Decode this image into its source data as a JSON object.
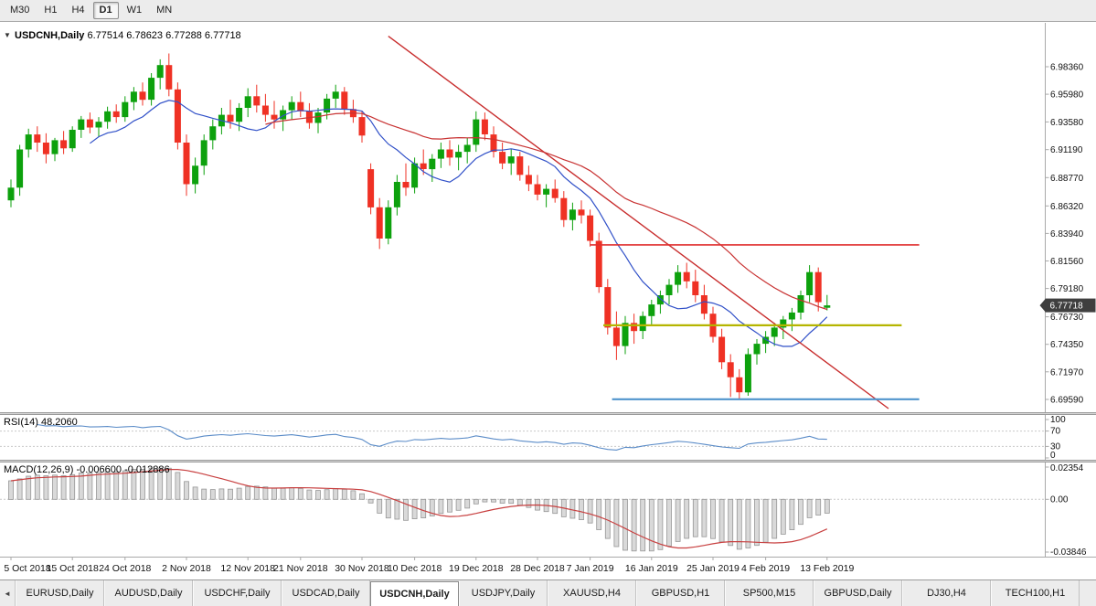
{
  "toolbar": {
    "timeframes": [
      {
        "label": "M30",
        "active": false
      },
      {
        "label": "H1",
        "active": false
      },
      {
        "label": "H4",
        "active": false
      },
      {
        "label": "D1",
        "active": true
      },
      {
        "label": "W1",
        "active": false
      },
      {
        "label": "MN",
        "active": false
      }
    ]
  },
  "chart": {
    "collapse_icon": "▼",
    "title_symbol": "USDCNH,Daily",
    "ohlc_text": "6.77514 6.78623 6.77288 6.77718",
    "price_tag": "6.77718",
    "price_axis": [
      {
        "v": 6.9836,
        "label": "6.98360"
      },
      {
        "v": 6.9598,
        "label": "6.95980"
      },
      {
        "v": 6.9358,
        "label": "6.93580"
      },
      {
        "v": 6.9119,
        "label": "6.91190"
      },
      {
        "v": 6.8877,
        "label": "6.88770"
      },
      {
        "v": 6.8632,
        "label": "6.86320"
      },
      {
        "v": 6.8394,
        "label": "6.83940"
      },
      {
        "v": 6.8156,
        "label": "6.81560"
      },
      {
        "v": 6.7918,
        "label": "6.79180"
      },
      {
        "v": 6.7673,
        "label": "6.76730"
      },
      {
        "v": 6.7435,
        "label": "6.74350"
      },
      {
        "v": 6.7197,
        "label": "6.71970"
      },
      {
        "v": 6.6959,
        "label": "6.69590"
      }
    ],
    "date_axis": [
      {
        "i": 0,
        "label": "5 Oct 2018"
      },
      {
        "i": 7,
        "label": "15 Oct 2018"
      },
      {
        "i": 13,
        "label": "24 Oct 2018"
      },
      {
        "i": 20,
        "label": "2 Nov 2018"
      },
      {
        "i": 27,
        "label": "12 Nov 2018"
      },
      {
        "i": 33,
        "label": "21 Nov 2018"
      },
      {
        "i": 40,
        "label": "30 Nov 2018"
      },
      {
        "i": 46,
        "label": "10 Dec 2018"
      },
      {
        "i": 53,
        "label": "19 Dec 2018"
      },
      {
        "i": 60,
        "label": "28 Dec 2018"
      },
      {
        "i": 66,
        "label": "7 Jan 2019"
      },
      {
        "i": 73,
        "label": "16 Jan 2019"
      },
      {
        "i": 80,
        "label": "25 Jan 2019"
      },
      {
        "i": 86,
        "label": "4 Feb 2019"
      },
      {
        "i": 93,
        "label": "13 Feb 2019"
      }
    ]
  },
  "rsi": {
    "label": "RSI(14)",
    "value": "48.2060",
    "period": 14,
    "levels": [
      70,
      30
    ],
    "scale": [
      {
        "v": 100,
        "label": "100"
      },
      {
        "v": 70,
        "label": "70"
      },
      {
        "v": 30,
        "label": "30"
      },
      {
        "v": 0,
        "label": "0"
      }
    ]
  },
  "macd": {
    "label": "MACD(12,26,9)",
    "value_main": "-0.006600",
    "value_signal": "-0.012886",
    "params": {
      "fast": 12,
      "slow": 26,
      "signal": 9
    },
    "scale": [
      {
        "v": 0.02354,
        "label": "0.02354"
      },
      {
        "v": 0,
        "label": "0.00"
      },
      {
        "v": -0.03846,
        "label": "-0.03846"
      }
    ]
  },
  "tabs": {
    "left_arrow": "◄",
    "items": [
      {
        "label": "EURUSD,Daily",
        "active": false
      },
      {
        "label": "AUDUSD,Daily",
        "active": false
      },
      {
        "label": "USDCHF,Daily",
        "active": false
      },
      {
        "label": "USDCAD,Daily",
        "active": false
      },
      {
        "label": "USDCNH,Daily",
        "active": true
      },
      {
        "label": "USDJPY,Daily",
        "active": false
      },
      {
        "label": "XAUUSD,H4",
        "active": false
      },
      {
        "label": "GBPUSD,H1",
        "active": false
      },
      {
        "label": "SP500,M15",
        "active": false
      },
      {
        "label": "GBPUSD,Daily",
        "active": false
      },
      {
        "label": "DJ30,H4",
        "active": false
      },
      {
        "label": "TECH100,H1",
        "active": false
      }
    ]
  },
  "colors": {
    "candle_up": "#0da10d",
    "candle_down": "#ef3124",
    "ma_fast": "#3050c8",
    "ma_slow": "#c83232",
    "trendline": "#c82e2e",
    "hline_red": "#e03030",
    "hline_yellow": "#b5b500",
    "hline_blue": "#4f94cd",
    "rsi_line": "#5b8cc8",
    "macd_hist_fill": "#d9d9d9",
    "macd_hist_stroke": "#969696",
    "macd_signal": "#c84040",
    "level_dash": "#c9c9c9",
    "axis_line": "#a9a9a9",
    "tag_bg": "#3f3f3f",
    "tag_text": "#ffffff"
  },
  "chart_data": {
    "type": "candlestick",
    "symbol": "USDCNH",
    "timeframe": "Daily",
    "title": "USDCNH,Daily 6.77514 6.78623 6.77288 6.77718",
    "price_ylim": [
      6.6848,
      7.0215
    ],
    "rsi_ylim": [
      0,
      100
    ],
    "macd_ylim": [
      -0.03846,
      0.02354
    ],
    "overlays": [
      {
        "type": "sma",
        "period": 10,
        "color_key": "ma_fast"
      },
      {
        "type": "sma",
        "period": 30,
        "color_key": "ma_slow"
      }
    ],
    "objects": {
      "trendline": {
        "from_bar": 43,
        "from_price": 7.01,
        "to_bar": 100,
        "to_price": 6.688
      },
      "hlines": [
        {
          "price": 6.8295,
          "from_bar": 66,
          "to_bar": 103.5,
          "color_key": "hline_red",
          "width": 1.6
        },
        {
          "price": 6.76,
          "from_bar": 67.5,
          "to_bar": 101.5,
          "color_key": "hline_yellow",
          "width": 2.2
        },
        {
          "price": 6.696,
          "from_bar": 68.5,
          "to_bar": 103.5,
          "color_key": "hline_blue",
          "width": 2.2
        }
      ]
    },
    "candles": [
      [
        6.868,
        6.886,
        6.862,
        6.879
      ],
      [
        6.879,
        6.916,
        6.872,
        6.912
      ],
      [
        6.912,
        6.93,
        6.905,
        6.925
      ],
      [
        6.925,
        6.932,
        6.91,
        6.918
      ],
      [
        6.918,
        6.926,
        6.9,
        6.908
      ],
      [
        6.908,
        6.922,
        6.902,
        6.92
      ],
      [
        6.92,
        6.928,
        6.908,
        6.913
      ],
      [
        6.913,
        6.932,
        6.91,
        6.929
      ],
      [
        6.929,
        6.941,
        6.922,
        6.938
      ],
      [
        6.938,
        6.944,
        6.926,
        6.931
      ],
      [
        6.931,
        6.94,
        6.923,
        6.936
      ],
      [
        6.936,
        6.949,
        6.93,
        6.945
      ],
      [
        6.945,
        6.951,
        6.935,
        6.94
      ],
      [
        6.94,
        6.958,
        6.936,
        6.953
      ],
      [
        6.953,
        6.966,
        6.946,
        6.962
      ],
      [
        6.962,
        6.97,
        6.95,
        6.955
      ],
      [
        6.955,
        6.978,
        6.95,
        6.974
      ],
      [
        6.974,
        6.99,
        6.964,
        6.985
      ],
      [
        6.985,
        6.995,
        6.958,
        6.964
      ],
      [
        6.964,
        6.97,
        6.912,
        6.918
      ],
      [
        6.918,
        6.925,
        6.872,
        6.882
      ],
      [
        6.882,
        6.905,
        6.874,
        6.898
      ],
      [
        6.898,
        6.925,
        6.89,
        6.92
      ],
      [
        6.92,
        6.938,
        6.912,
        6.932
      ],
      [
        6.932,
        6.948,
        6.925,
        6.942
      ],
      [
        6.942,
        6.955,
        6.93,
        6.936
      ],
      [
        6.936,
        6.952,
        6.928,
        6.948
      ],
      [
        6.948,
        6.965,
        6.94,
        6.958
      ],
      [
        6.958,
        6.968,
        6.944,
        6.95
      ],
      [
        6.95,
        6.96,
        6.936,
        6.942
      ],
      [
        6.942,
        6.954,
        6.93,
        6.938
      ],
      [
        6.938,
        6.95,
        6.928,
        6.946
      ],
      [
        6.946,
        6.958,
        6.938,
        6.953
      ],
      [
        6.953,
        6.962,
        6.94,
        6.945
      ],
      [
        6.945,
        6.952,
        6.93,
        6.935
      ],
      [
        6.935,
        6.948,
        6.926,
        6.944
      ],
      [
        6.944,
        6.96,
        6.938,
        6.956
      ],
      [
        6.956,
        6.968,
        6.948,
        6.962
      ],
      [
        6.962,
        6.966,
        6.942,
        6.947
      ],
      [
        6.947,
        6.955,
        6.935,
        6.94
      ],
      [
        6.94,
        6.945,
        6.918,
        6.924
      ],
      [
        6.895,
        6.9,
        6.856,
        6.862
      ],
      [
        6.862,
        6.87,
        6.826,
        6.835
      ],
      [
        6.835,
        6.868,
        6.83,
        6.862
      ],
      [
        6.862,
        6.89,
        6.855,
        6.884
      ],
      [
        6.884,
        6.9,
        6.872,
        6.879
      ],
      [
        6.879,
        6.905,
        6.874,
        6.9
      ],
      [
        6.9,
        6.912,
        6.89,
        6.895
      ],
      [
        6.895,
        6.908,
        6.884,
        6.904
      ],
      [
        6.904,
        6.918,
        6.896,
        6.912
      ],
      [
        6.912,
        6.92,
        6.898,
        6.905
      ],
      [
        6.905,
        6.916,
        6.894,
        6.91
      ],
      [
        6.91,
        6.922,
        6.9,
        6.916
      ],
      [
        6.916,
        6.945,
        6.91,
        6.938
      ],
      [
        6.938,
        6.944,
        6.92,
        6.925
      ],
      [
        6.925,
        6.932,
        6.905,
        6.91
      ],
      [
        6.91,
        6.918,
        6.895,
        6.9
      ],
      [
        6.9,
        6.912,
        6.89,
        6.906
      ],
      [
        6.906,
        6.91,
        6.885,
        6.89
      ],
      [
        6.89,
        6.898,
        6.876,
        6.882
      ],
      [
        6.882,
        6.89,
        6.868,
        6.873
      ],
      [
        6.873,
        6.882,
        6.862,
        6.878
      ],
      [
        6.878,
        6.886,
        6.866,
        6.87
      ],
      [
        6.87,
        6.876,
        6.845,
        6.851
      ],
      [
        6.851,
        6.866,
        6.842,
        6.86
      ],
      [
        6.86,
        6.868,
        6.848,
        6.855
      ],
      [
        6.855,
        6.86,
        6.828,
        6.833
      ],
      [
        6.833,
        6.84,
        6.788,
        6.793
      ],
      [
        6.793,
        6.8,
        6.752,
        6.758
      ],
      [
        6.758,
        6.772,
        6.73,
        6.742
      ],
      [
        6.742,
        6.768,
        6.735,
        6.762
      ],
      [
        6.762,
        6.77,
        6.744,
        6.755
      ],
      [
        6.755,
        6.772,
        6.748,
        6.768
      ],
      [
        6.768,
        6.782,
        6.76,
        6.778
      ],
      [
        6.778,
        6.79,
        6.77,
        6.786
      ],
      [
        6.786,
        6.8,
        6.778,
        6.795
      ],
      [
        6.795,
        6.812,
        6.788,
        6.806
      ],
      [
        6.806,
        6.814,
        6.792,
        6.798
      ],
      [
        6.798,
        6.808,
        6.78,
        6.786
      ],
      [
        6.786,
        6.795,
        6.765,
        6.77
      ],
      [
        6.77,
        6.776,
        6.745,
        6.75
      ],
      [
        6.75,
        6.757,
        6.722,
        6.728
      ],
      [
        6.728,
        6.735,
        6.698,
        6.715
      ],
      [
        6.715,
        6.722,
        6.696,
        6.702
      ],
      [
        6.702,
        6.74,
        6.699,
        6.735
      ],
      [
        6.735,
        6.748,
        6.726,
        6.744
      ],
      [
        6.744,
        6.755,
        6.736,
        6.75
      ],
      [
        6.75,
        6.762,
        6.742,
        6.758
      ],
      [
        6.758,
        6.768,
        6.748,
        6.765
      ],
      [
        6.765,
        6.775,
        6.755,
        6.771
      ],
      [
        6.771,
        6.79,
        6.765,
        6.786
      ],
      [
        6.786,
        6.812,
        6.78,
        6.806
      ],
      [
        6.806,
        6.81,
        6.772,
        6.78
      ],
      [
        6.77514,
        6.78623,
        6.77288,
        6.77718
      ]
    ]
  }
}
